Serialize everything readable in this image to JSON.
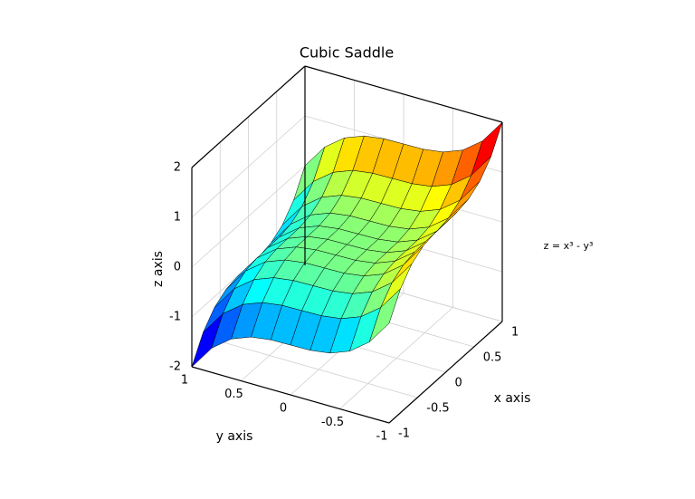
{
  "chart_data": {
    "type": "surface",
    "title": "Cubic Saddle",
    "x_label": "x axis",
    "y_label": "y axis",
    "z_label": "z axis",
    "x": [
      -1,
      -0.8,
      -0.6,
      -0.4,
      -0.2,
      0,
      0.2,
      0.4,
      0.6,
      0.8,
      1
    ],
    "y": [
      -1,
      -0.8,
      -0.6,
      -0.4,
      -0.2,
      0,
      0.2,
      0.4,
      0.6,
      0.8,
      1
    ],
    "series": [
      {
        "name": "z = x³ - y³",
        "colormap": "jet",
        "z": [
          [
            0,
            0.488,
            0.784,
            0.936,
            0.992,
            1,
            1.008,
            1.064,
            1.216,
            1.512,
            2
          ],
          [
            -0.488,
            0,
            0.296,
            0.448,
            0.504,
            0.512,
            0.52,
            0.576,
            0.728,
            1.024,
            1.512
          ],
          [
            -0.784,
            -0.296,
            0,
            0.152,
            0.208,
            0.216,
            0.224,
            0.28,
            0.432,
            0.728,
            1.216
          ],
          [
            -0.936,
            -0.448,
            -0.152,
            0,
            0.056,
            0.064,
            0.072,
            0.128,
            0.28,
            0.576,
            1.064
          ],
          [
            -0.992,
            -0.504,
            -0.208,
            -0.056,
            0,
            0.008,
            0.016,
            0.072,
            0.224,
            0.52,
            1.008
          ],
          [
            -1,
            -0.512,
            -0.216,
            -0.064,
            -0.008,
            0,
            0.008,
            0.064,
            0.216,
            0.512,
            1
          ],
          [
            -1.008,
            -0.52,
            -0.224,
            -0.072,
            -0.016,
            -0.008,
            0,
            0.056,
            0.208,
            0.504,
            0.992
          ],
          [
            -1.064,
            -0.576,
            -0.28,
            -0.128,
            -0.072,
            -0.064,
            -0.056,
            0,
            0.152,
            0.448,
            0.936
          ],
          [
            -1.216,
            -0.728,
            -0.432,
            -0.28,
            -0.224,
            -0.216,
            -0.208,
            -0.152,
            0,
            0.296,
            0.784
          ],
          [
            -1.512,
            -1.024,
            -0.728,
            -0.576,
            -0.52,
            -0.512,
            -0.504,
            -0.448,
            -0.296,
            0,
            0.488
          ],
          [
            -2,
            -1.512,
            -1.216,
            -1.064,
            -1.008,
            -1,
            -0.992,
            -0.936,
            -0.784,
            -0.488,
            0
          ]
        ]
      }
    ],
    "xlim": [
      -1,
      1
    ],
    "ylim": [
      -1,
      1
    ],
    "zlim": [
      -2,
      2
    ],
    "xticks": [
      -1,
      -0.5,
      0,
      0.5,
      1
    ],
    "yticks": [
      -1,
      -0.5,
      0,
      0.5,
      1
    ],
    "zticks": [
      -2,
      -1,
      0,
      1,
      2
    ],
    "grid": true
  }
}
